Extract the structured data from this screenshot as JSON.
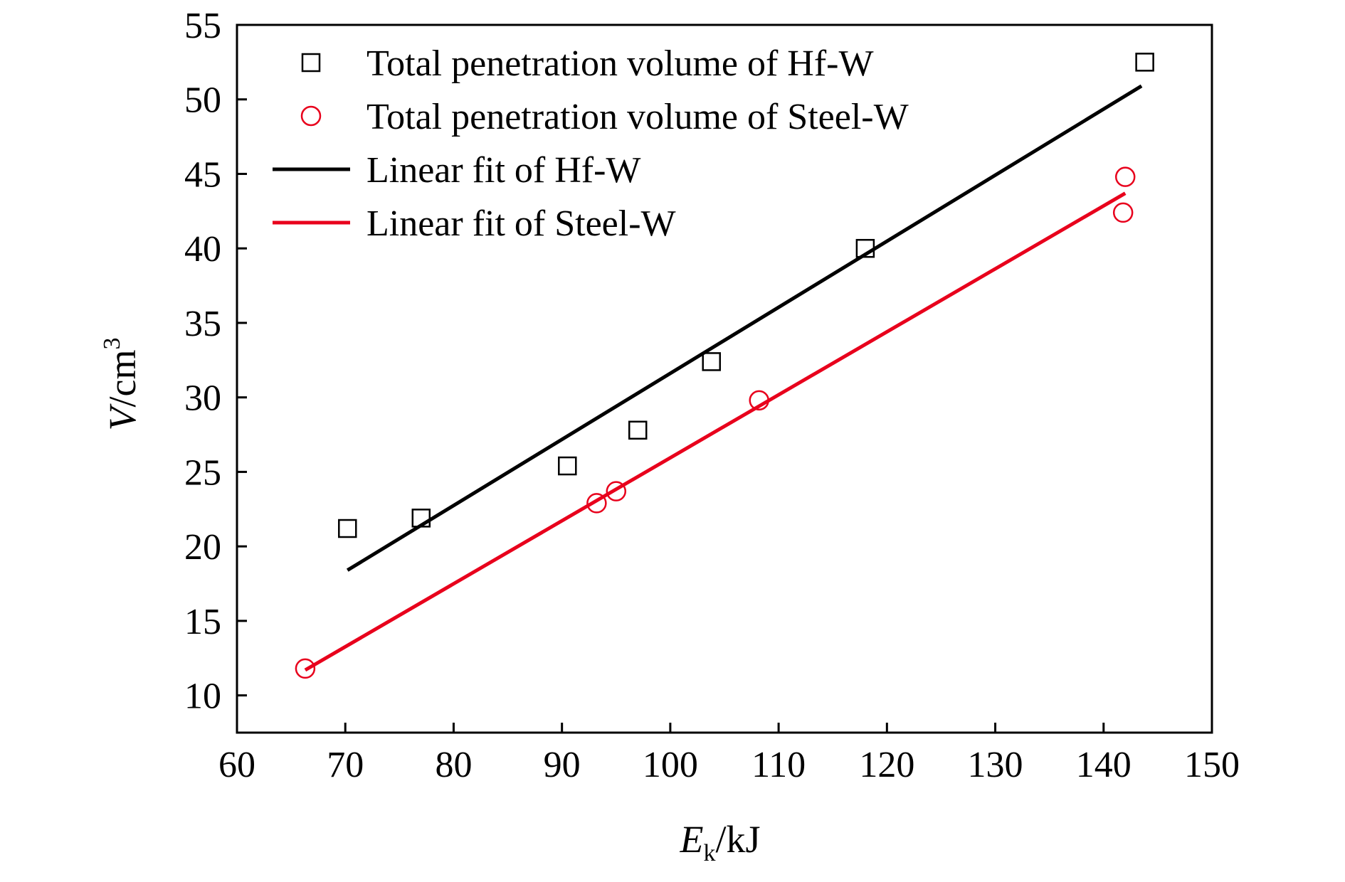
{
  "chart_data": {
    "type": "scatter",
    "title": "",
    "xlabel": {
      "main": "E",
      "sub": "k",
      "unit": "/kJ"
    },
    "ylabel": {
      "main": "V",
      "unit": "/cm",
      "sup": "3"
    },
    "xlim": [
      60,
      150
    ],
    "ylim": [
      7.5,
      55
    ],
    "xticks": [
      60,
      70,
      80,
      90,
      100,
      110,
      120,
      130,
      140,
      150
    ],
    "yticks": [
      10,
      15,
      20,
      25,
      30,
      35,
      40,
      45,
      50,
      55
    ],
    "grid": false,
    "legend_position": "top-left",
    "series": [
      {
        "name": "Total penetration volume of Hf-W",
        "kind": "scatter",
        "marker": "square",
        "color": "#000000",
        "points": [
          [
            70.2,
            21.2
          ],
          [
            77.0,
            21.9
          ],
          [
            90.5,
            25.4
          ],
          [
            97.0,
            27.8
          ],
          [
            103.8,
            32.4
          ],
          [
            118.0,
            40.0
          ],
          [
            143.8,
            52.5
          ]
        ]
      },
      {
        "name": "Total penetration volume of Steel-W",
        "kind": "scatter",
        "marker": "circle",
        "color": "#e8001c",
        "points": [
          [
            66.3,
            11.8
          ],
          [
            93.2,
            22.9
          ],
          [
            95.0,
            23.7
          ],
          [
            108.2,
            29.8
          ],
          [
            142.0,
            44.8
          ],
          [
            141.8,
            42.4
          ]
        ]
      },
      {
        "name": "Linear fit of Hf-W",
        "kind": "line",
        "color": "#000000",
        "points": [
          [
            70.2,
            18.4
          ],
          [
            143.5,
            50.9
          ]
        ]
      },
      {
        "name": "Linear fit of Steel-W",
        "kind": "line",
        "color": "#e8001c",
        "points": [
          [
            66.3,
            11.7
          ],
          [
            142.0,
            43.7
          ]
        ]
      }
    ]
  }
}
